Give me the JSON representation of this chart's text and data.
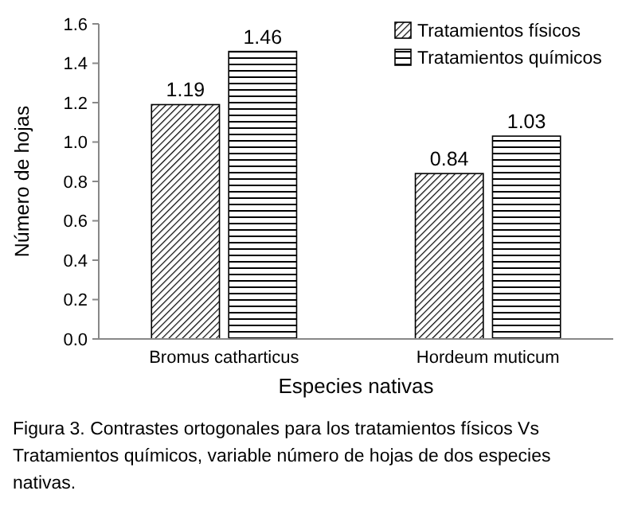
{
  "chart_data": {
    "type": "bar",
    "xlabel": "Especies nativas",
    "ylabel": "Número de hojas",
    "categories": [
      "Bromus catharticus",
      "Hordeum muticum"
    ],
    "series": [
      {
        "name": "Tratamientos físicos",
        "color": "#000000",
        "values": [
          1.19,
          0.84
        ]
      },
      {
        "name": "Tratamientos químicos",
        "color": "#000000",
        "values": [
          1.46,
          1.03
        ]
      }
    ],
    "ylim": [
      0,
      1.6
    ],
    "yticks": [
      {
        "value": 0,
        "label": "0.0"
      },
      {
        "value": 0.2,
        "label": "0.2"
      },
      {
        "value": 0.4,
        "label": "0.4"
      },
      {
        "value": 0.6,
        "label": "0.6"
      },
      {
        "value": 0.8,
        "label": "0.8"
      },
      {
        "value": 1,
        "label": "1.0"
      },
      {
        "value": 1.2,
        "label": "1.2"
      },
      {
        "value": 1.4,
        "label": "1.4"
      },
      {
        "value": 1.6,
        "label": "1.6"
      }
    ],
    "data_labels": true,
    "legend": "top right",
    "grid": false,
    "annotations": [
      "Figura 3. Contrastes ortogonales para los tratamientos físicos Vs Tratamientos químicos, variable número de hojas de dos especies nativas."
    ]
  }
}
